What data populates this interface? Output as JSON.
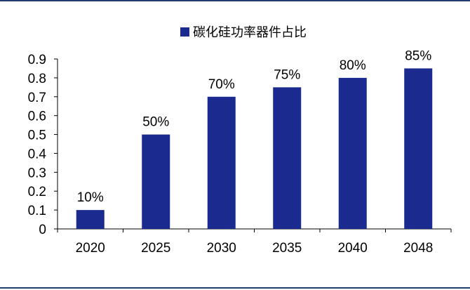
{
  "colors": {
    "frame": "#1f3b73",
    "bar": "#1a2a8f"
  },
  "chart_data": {
    "type": "bar",
    "categories": [
      "2020",
      "2025",
      "2030",
      "2035",
      "2040",
      "2048"
    ],
    "series": [
      {
        "name": "碳化硅功率器件占比",
        "values": [
          0.1,
          0.5,
          0.7,
          0.75,
          0.8,
          0.85
        ]
      }
    ],
    "data_labels": [
      "10%",
      "50%",
      "70%",
      "75%",
      "80%",
      "85%"
    ],
    "y_ticks": [
      "0",
      "0.1",
      "0.2",
      "0.3",
      "0.4",
      "0.5",
      "0.6",
      "0.7",
      "0.8",
      "0.9"
    ],
    "ylim": [
      0,
      0.9
    ],
    "legend_position": "top-center",
    "grid": false,
    "title": "",
    "xlabel": "",
    "ylabel": ""
  }
}
